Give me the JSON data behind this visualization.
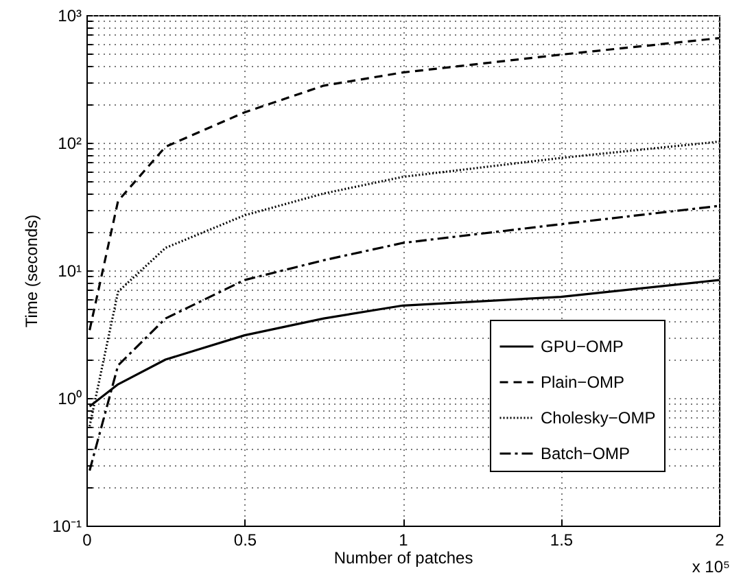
{
  "chart_data": {
    "type": "line",
    "xlabel": "Number of patches",
    "ylabel": "Time (seconds)",
    "annotations": [
      "x 10⁵"
    ],
    "x": [
      0.01,
      0.1,
      0.25,
      0.5,
      0.75,
      1,
      1.5,
      2
    ],
    "series": [
      {
        "name": "GPU−OMP",
        "color": "#000000",
        "line_style": "solid",
        "values": [
          0.86,
          1.28,
          2.0,
          3.1,
          4.2,
          5.3,
          6.2,
          8.4
        ]
      },
      {
        "name": "Plain−OMP",
        "color": "#000000",
        "line_style": "dashed",
        "values": [
          3.4,
          35,
          93,
          173,
          280,
          355,
          490,
          660
        ]
      },
      {
        "name": "Cholesky−OMP",
        "color": "#000000",
        "line_style": "dotted",
        "values": [
          0.6,
          6.8,
          15,
          27,
          40,
          54,
          76,
          102
        ]
      },
      {
        "name": "Batch−OMP",
        "color": "#000000",
        "line_style": "dashdot",
        "values": [
          0.27,
          1.8,
          4.2,
          8.4,
          12,
          16.4,
          23,
          32
        ]
      }
    ],
    "log": "y",
    "grid": true,
    "legend": "bottom right",
    "marker": "none",
    "xlim": [
      0,
      2
    ],
    "xticks": [
      0,
      0.5,
      1,
      1.5,
      2
    ],
    "ylim": [
      0.1,
      1000
    ],
    "yticks": [
      {
        "value": 0.1,
        "label": "10⁻¹"
      },
      {
        "value": 0.2,
        "label": null
      },
      {
        "value": 0.3,
        "label": null
      },
      {
        "value": 0.4,
        "label": null
      },
      {
        "value": 0.5,
        "label": null
      },
      {
        "value": 0.6,
        "label": null
      },
      {
        "value": 0.7,
        "label": null
      },
      {
        "value": 0.8,
        "label": null
      },
      {
        "value": 0.9,
        "label": null
      },
      {
        "value": 1,
        "label": "10⁰"
      },
      {
        "value": 2,
        "label": null
      },
      {
        "value": 3,
        "label": null
      },
      {
        "value": 4,
        "label": null
      },
      {
        "value": 5,
        "label": null
      },
      {
        "value": 6,
        "label": null
      },
      {
        "value": 7,
        "label": null
      },
      {
        "value": 8,
        "label": null
      },
      {
        "value": 9,
        "label": null
      },
      {
        "value": 10,
        "label": "10¹"
      },
      {
        "value": 20,
        "label": null
      },
      {
        "value": 30,
        "label": null
      },
      {
        "value": 40,
        "label": null
      },
      {
        "value": 50,
        "label": null
      },
      {
        "value": 60,
        "label": null
      },
      {
        "value": 70,
        "label": null
      },
      {
        "value": 80,
        "label": null
      },
      {
        "value": 90,
        "label": null
      },
      {
        "value": 100,
        "label": "10²"
      },
      {
        "value": 200,
        "label": null
      },
      {
        "value": 300,
        "label": null
      },
      {
        "value": 400,
        "label": null
      },
      {
        "value": 500,
        "label": null
      },
      {
        "value": 600,
        "label": null
      },
      {
        "value": 700,
        "label": null
      },
      {
        "value": 800,
        "label": null
      },
      {
        "value": 900,
        "label": null
      },
      {
        "value": 1000,
        "label": "10³"
      }
    ]
  }
}
